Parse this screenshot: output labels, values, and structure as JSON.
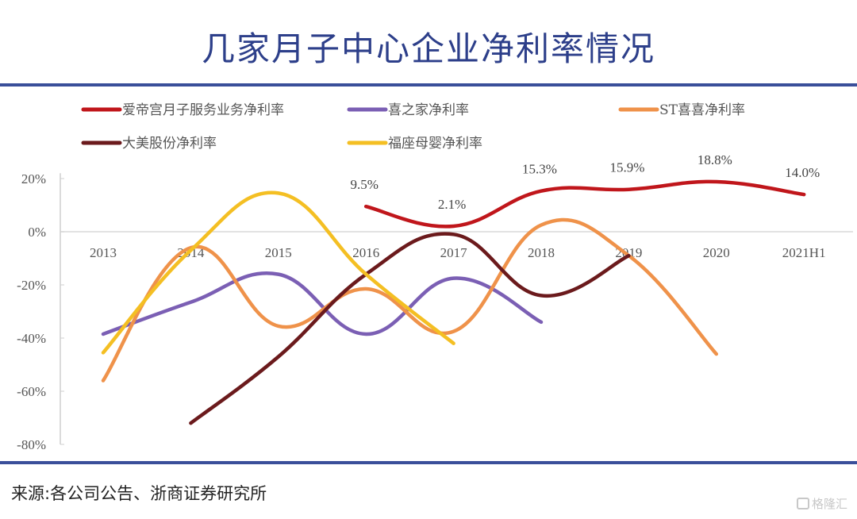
{
  "page": {
    "title": "几家月子中心企业净利率情况",
    "source": "来源:各公司公告、浙商证券研究所",
    "watermark": "格隆汇",
    "accent_color": "#3a4f9a"
  },
  "chart_data": {
    "type": "line",
    "title": "几家月子中心企业净利率情况",
    "xlabel": "",
    "ylabel": "",
    "categories": [
      "2013",
      "2014",
      "2015",
      "2016",
      "2017",
      "2018",
      "2019",
      "2020",
      "2021H1"
    ],
    "yticks": [
      "20%",
      "0%",
      "-20%",
      "-40%",
      "-60%",
      "-80%"
    ],
    "ytick_values": [
      20,
      0,
      -20,
      -40,
      -60,
      -80
    ],
    "ylim": [
      -80,
      25
    ],
    "grid": false,
    "legend_position": "top",
    "series": [
      {
        "name": "爱帝宫月子服务业务净利率",
        "color": "#c0161b",
        "values": [
          null,
          null,
          null,
          9.5,
          2.1,
          15.3,
          15.9,
          18.8,
          14.0
        ],
        "labels": [
          "",
          "",
          "",
          "9.5%",
          "2.1%",
          "15.3%",
          "15.9%",
          "18.8%",
          "14.0%"
        ]
      },
      {
        "name": "喜之家净利率",
        "color": "#7b5fb4",
        "values": [
          -38.5,
          -26.5,
          -16,
          -38.5,
          -17.5,
          -34,
          null,
          null,
          null
        ]
      },
      {
        "name": "ST喜喜净利率",
        "color": "#ef924a",
        "values": [
          -56,
          -6,
          -35.5,
          -21.5,
          -37.5,
          2.5,
          -9,
          -46,
          null
        ]
      },
      {
        "name": "大美股份净利率",
        "color": "#6b1a1c",
        "values": [
          null,
          -72,
          -47,
          -16,
          -1,
          -24,
          -9,
          null,
          null
        ]
      },
      {
        "name": "福座母婴净利率",
        "color": "#f4bf23",
        "values": [
          -45.5,
          -7,
          14.5,
          -16,
          -42,
          null,
          null,
          null,
          null
        ]
      }
    ]
  }
}
